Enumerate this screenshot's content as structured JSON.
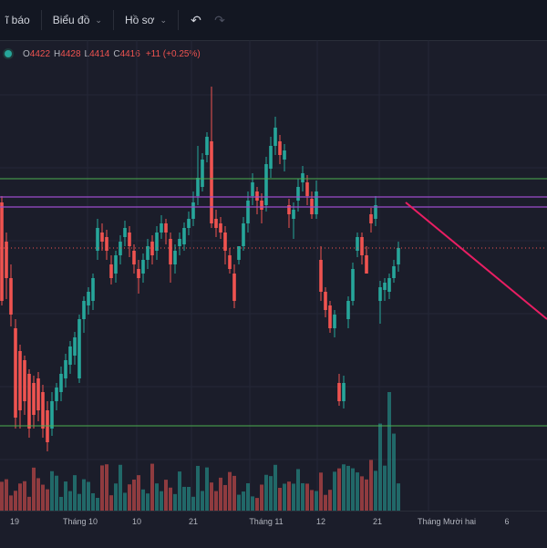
{
  "toolbar": {
    "alerts_label": "ĩ báo",
    "charts_label": "Biểu đồ",
    "profile_label": "Hồ sơ",
    "undo_icon": "undo-icon",
    "redo_icon": "redo-icon"
  },
  "legend": {
    "status_color": "#26a69a",
    "open_label": "O",
    "open_value": "4422",
    "high_label": "H",
    "high_value": "4428",
    "low_label": "L",
    "low_value": "4414",
    "close_label": "C",
    "close_value": "4416",
    "change": "+11 (+0.25%)"
  },
  "xaxis": {
    "labels": [
      "19",
      "Tháng 10",
      "10",
      "21",
      "Tháng 11",
      "12",
      "21",
      "Tháng Mười hai",
      "6"
    ]
  },
  "colors": {
    "up": "#26a69a",
    "down": "#ef5350",
    "horizontal_green": "#4caf50",
    "horizontal_purple": "#9c4dcc",
    "trendline": "#e91e63",
    "last_price": "#ef5350"
  }
}
